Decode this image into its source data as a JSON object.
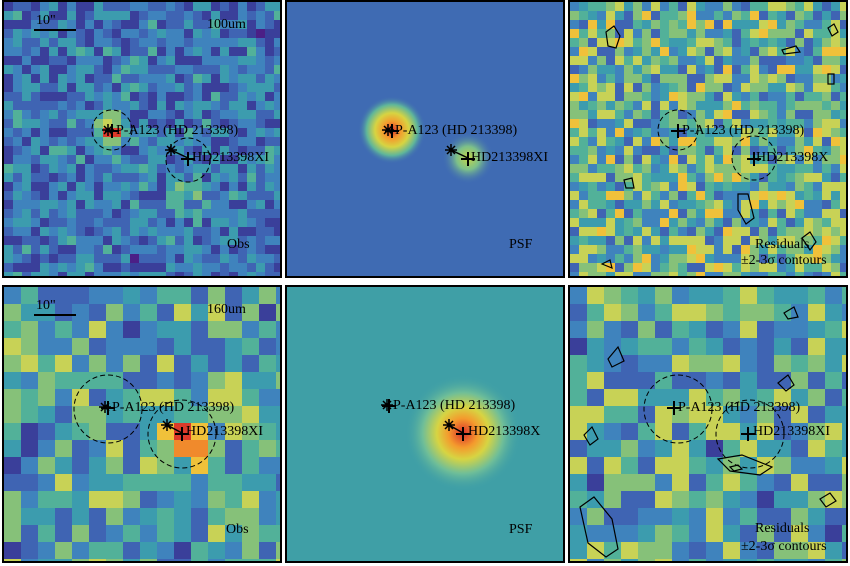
{
  "colors": {
    "border": "#000000",
    "psf_background_top": "#3f6bb3",
    "psf_background_bottom": "#3f9fa6"
  },
  "scale_bar_label": "10\"",
  "rows": [
    {
      "band": "100um",
      "panels": [
        {
          "kind": "observed",
          "corner_label": "Obs",
          "label_line2": ""
        },
        {
          "kind": "psf",
          "corner_label": "PSF",
          "label_line2": ""
        },
        {
          "kind": "residual",
          "corner_label": "Residuals",
          "label_line2": "±2-3σ contours"
        }
      ]
    },
    {
      "band": "160um",
      "panels": [
        {
          "kind": "observed",
          "corner_label": "Obs",
          "label_line2": ""
        },
        {
          "kind": "psf",
          "corner_label": "PSF",
          "label_line2": ""
        },
        {
          "kind": "residual",
          "corner_label": "Residuals",
          "label_line2": "±2-3σ contours"
        }
      ]
    }
  ],
  "sources": {
    "primary": "P-A123 (HD 213398)",
    "secondary": "HD213398X"
  },
  "sources_top_psf_secondary": "HD213398XI",
  "sources_top_obs_secondary": "HD213398XI",
  "sources_bottom_secondary": "HD213398XI",
  "sources_bottom_psf_secondary": "HD213398X"
}
